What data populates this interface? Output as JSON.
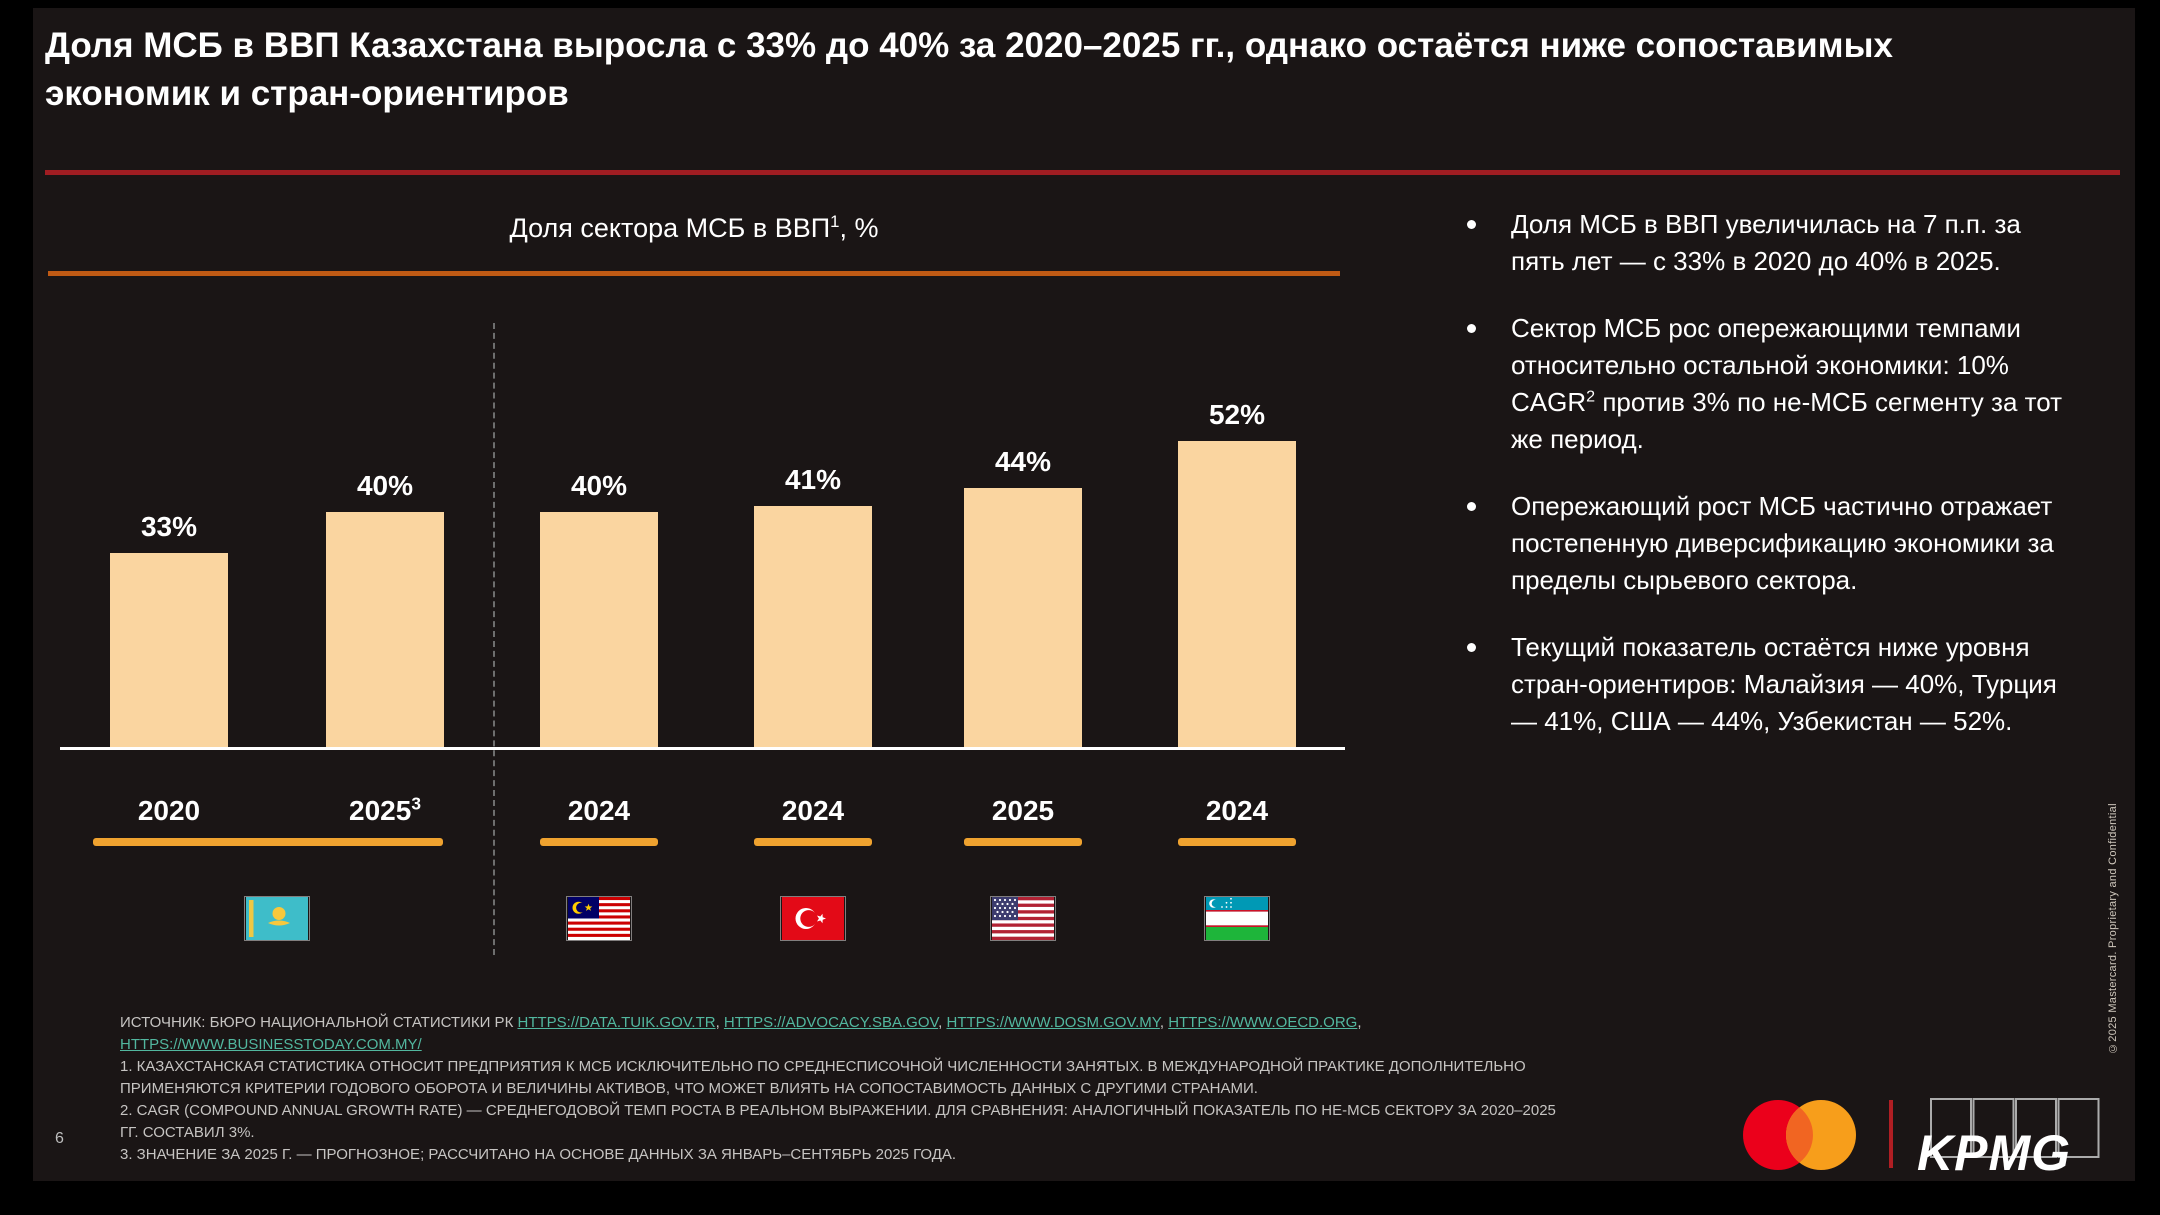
{
  "slide": {
    "title": "Доля МСБ в ВВП Казахстана выросла с 33% до 40% за 2020–2025 гг., однако остаётся ниже сопоставимых экономик и стран-ориентиров",
    "page_number": "6",
    "copyright_vertical": "©2025 Mastercard. Proprietary and Confidential"
  },
  "chart_data": {
    "type": "bar",
    "title": "Доля сектора МСБ в ВВП¹, %",
    "title_pre": "Доля сектора МСБ в ВВП",
    "title_sup": "1",
    "title_post": ", %",
    "xlabel": "",
    "ylabel": "",
    "unit": "%",
    "ylim": [
      0,
      60
    ],
    "grid": false,
    "categories": [
      "Казахстан 2020",
      "Казахстан 2025 (прогноз)",
      "Малайзия 2024",
      "Турция 2024",
      "США 2025",
      "Узбекистан 2024"
    ],
    "values": [
      33,
      40,
      40,
      41,
      44,
      52
    ],
    "bars": [
      {
        "group": "Казахстан",
        "year": "2020",
        "value": 33,
        "label": "33%"
      },
      {
        "group": "Казахстан",
        "year": "2025",
        "year_sup": "3",
        "value": 40,
        "label": "40%"
      },
      {
        "group": "Малайзия",
        "year": "2024",
        "value": 40,
        "label": "40%"
      },
      {
        "group": "Турция",
        "year": "2024",
        "value": 41,
        "label": "41%"
      },
      {
        "group": "США",
        "year": "2025",
        "value": 44,
        "label": "44%"
      },
      {
        "group": "Узбекистан",
        "year": "2024",
        "value": 52,
        "label": "52%"
      }
    ]
  },
  "bullets": [
    {
      "pre": "Доля МСБ в ВВП увеличилась на 7 п.п. за пять лет — с 33% в 2020 до 40% в 2025."
    },
    {
      "pre": "Сектор МСБ рос опережающими темпами относительно остальной экономики: 10% CAGR",
      "sup": "2",
      "post": " против 3% по не-МСБ сегменту за тот же период."
    },
    {
      "pre": "Опережающий рост МСБ частично отражает постепенную диверсификацию экономики за пределы сырьевого сектора."
    },
    {
      "pre": "Текущий показатель остаётся ниже уровня стран-ориентиров: Малайзия — 40%, Турция — 41%, США — 44%, Узбекистан — 52%."
    }
  ],
  "footnotes": {
    "source_label": "ИСТОЧНИК: БЮРО НАЦИОНАЛЬНОЙ СТАТИСТИКИ РК  ",
    "links": [
      {
        "text": "HTTPS://DATA.TUIK.GOV.TR",
        "sep": ", "
      },
      {
        "text": "HTTPS://ADVOCACY.SBA.GOV",
        "sep": ", "
      },
      {
        "text": "HTTPS://WWW.DOSM.GOV.MY",
        "sep": ", "
      },
      {
        "text": "HTTPS://WWW.OECD.ORG",
        "sep": ","
      },
      {
        "text": "HTTPS://WWW.BUSINESSTODAY.COM.MY/",
        "sep": ""
      }
    ],
    "notes": [
      "1. КАЗАХСТАНСКАЯ СТАТИСТИКА ОТНОСИТ ПРЕДПРИЯТИЯ К МСБ ИСКЛЮЧИТЕЛЬНО ПО СРЕДНЕСПИСОЧНОЙ ЧИСЛЕННОСТИ ЗАНЯТЫХ. В МЕЖДУНАРОДНОЙ ПРАКТИКЕ ДОПОЛНИТЕЛЬНО ПРИМЕНЯЮТСЯ КРИТЕРИИ ГОДОВОГО ОБОРОТА И ВЕЛИЧИНЫ АКТИВОВ, ЧТО МОЖЕТ ВЛИЯТЬ НА СОПОСТАВИМОСТЬ ДАННЫХ С ДРУГИМИ СТРАНАМИ.",
      "2. CAGR (COMPOUND ANNUAL GROWTH RATE) — СРЕДНЕГОДОВОЙ ТЕМП РОСТА В РЕАЛЬНОМ ВЫРАЖЕНИИ. ДЛЯ СРАВНЕНИЯ: АНАЛОГИЧНЫЙ ПОКАЗАТЕЛЬ ПО НЕ-МСБ СЕКТОРУ ЗА 2020–2025 ГГ. СОСТАВИЛ 3%.",
      "3. ЗНАЧЕНИЕ ЗА 2025 Г. — ПРОГНОЗНОЕ; РАССЧИТАНО НА ОСНОВЕ ДАННЫХ ЗА ЯНВАРЬ–СЕНТЯБРЬ 2025 ГОДА."
    ]
  },
  "logos": {
    "kpmg_text": "KPMG"
  },
  "icons": {
    "flags": [
      {
        "name": "flag-kazakhstan-icon",
        "country": "Казахстан"
      },
      {
        "name": "flag-malaysia-icon",
        "country": "Малайзия"
      },
      {
        "name": "flag-turkey-icon",
        "country": "Турция"
      },
      {
        "name": "flag-usa-icon",
        "country": "США"
      },
      {
        "name": "flag-uzbekistan-icon",
        "country": "Узбекистан"
      }
    ],
    "logos": [
      "mastercard-logo",
      "kpmg-logo"
    ]
  },
  "colors": {
    "background": "#1A1515",
    "outer_background": "#000000",
    "title_rule_red": "#A01D22",
    "chart_rule_orange": "#C05A14",
    "bar_fill": "#FAD5A0",
    "country_underline_orange": "#EFA22F",
    "link_teal": "#52B79F",
    "footnote_gray": "#C6C4C2",
    "mastercard_red": "#EB001B",
    "mastercard_orange": "#F79E1B",
    "mastercard_overlap": "#F16522"
  }
}
